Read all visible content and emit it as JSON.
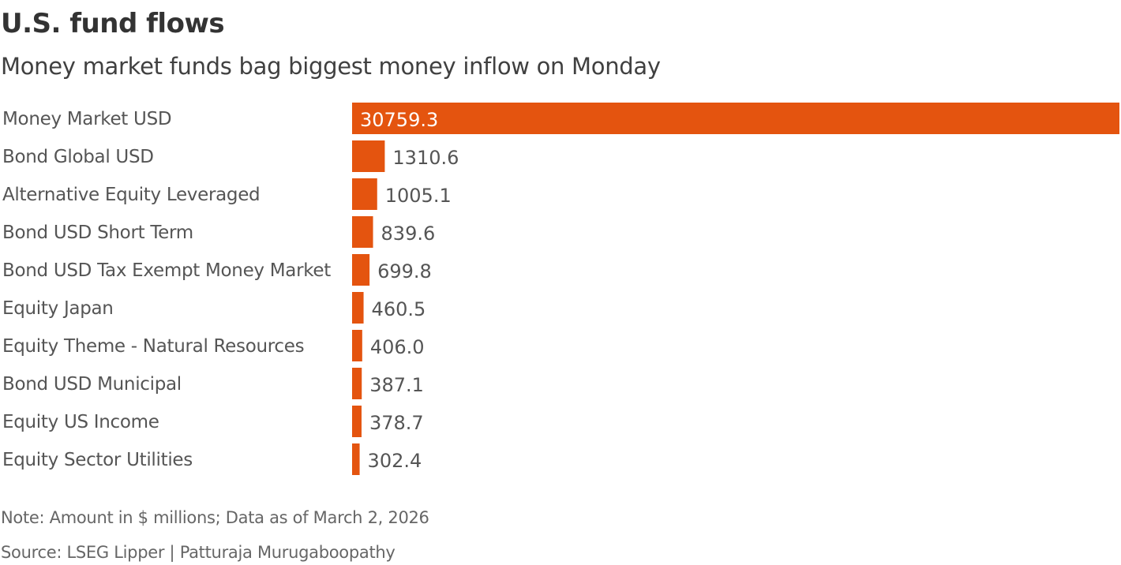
{
  "chart_data": {
    "type": "bar",
    "orientation": "horizontal",
    "title": "U.S. fund flows",
    "subtitle": "Money market funds bag biggest money inflow on Monday",
    "categories": [
      "Money Market USD",
      "Bond Global USD",
      "Alternative Equity Leveraged",
      "Bond USD Short Term",
      "Bond USD Tax Exempt Money Market",
      "Equity Japan",
      "Equity Theme - Natural Resources",
      "Bond USD Municipal",
      "Equity US Income",
      "Equity Sector Utilities"
    ],
    "values": [
      30759.3,
      1310.6,
      1005.1,
      839.6,
      699.8,
      460.5,
      406.0,
      387.1,
      378.7,
      302.4
    ],
    "value_labels": [
      "30759.3",
      "1310.6",
      "1005.1",
      "839.6",
      "699.8",
      "460.5",
      "406.0",
      "387.1",
      "378.7",
      "302.4"
    ],
    "xlim": [
      0,
      30759.3
    ],
    "grid": false,
    "bar_color": "#e4540f",
    "note": "Note: Amount in $ millions; Data as of March 2, 2026",
    "source": "Source: LSEG Lipper  | Patturaja Murugaboopathy"
  }
}
